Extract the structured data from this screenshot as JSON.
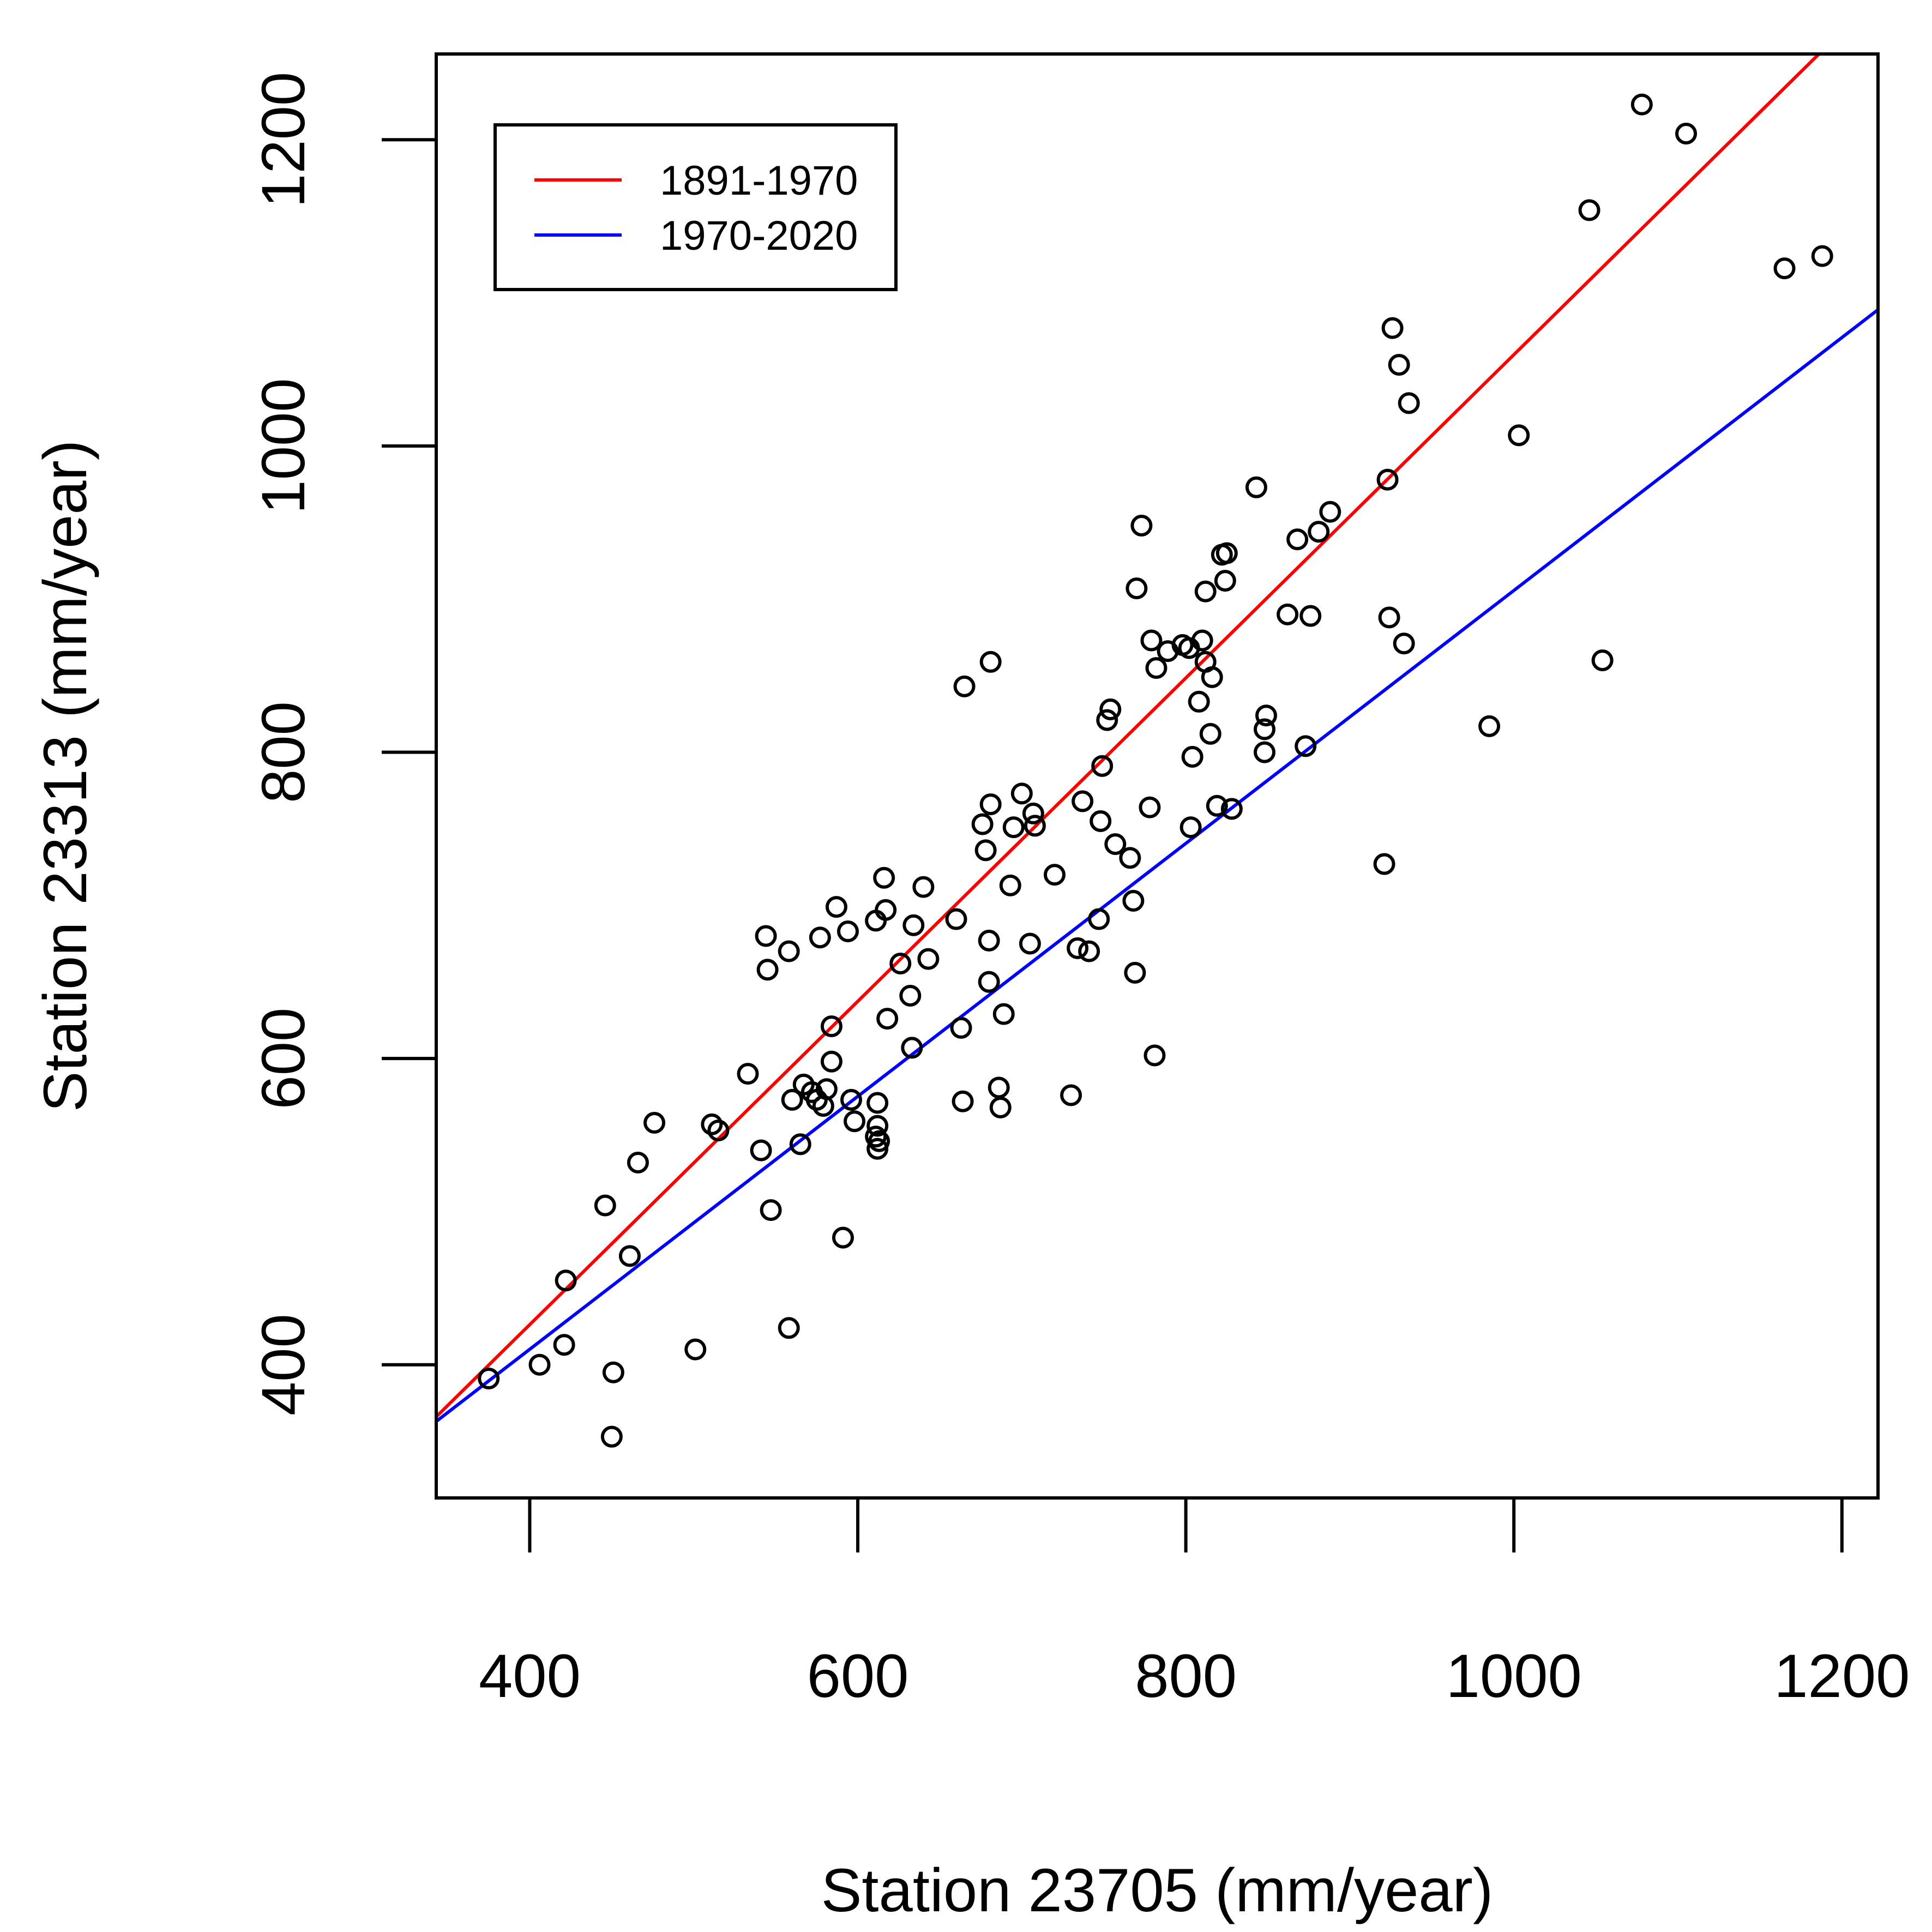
{
  "chart_data": {
    "type": "scatter",
    "title": "",
    "xlabel": "Station 23705 (mm/year)",
    "ylabel": "Station 23313 (mm/year)",
    "xlim": [
      343,
      1222
    ],
    "ylim": [
      313,
      1256
    ],
    "x_ticks": [
      400,
      600,
      800,
      1000,
      1200
    ],
    "y_ticks": [
      400,
      600,
      800,
      1000,
      1200
    ],
    "x_tick_labels": [
      "400",
      "600",
      "800",
      "1000",
      "1200"
    ],
    "y_tick_labels": [
      "400",
      "600",
      "800",
      "1000",
      "1200"
    ],
    "grid": false,
    "legend": {
      "position": "top-left",
      "entries": [
        {
          "label": "1891-1970",
          "color": "#ff0000"
        },
        {
          "label": "1970-2020",
          "color": "#0000ff"
        }
      ]
    },
    "lines": [
      {
        "name": "1891-1970",
        "color": "#ff0000",
        "x": [
          343,
          1186
        ],
        "y": [
          366,
          1256
        ]
      },
      {
        "name": "1970-2020",
        "color": "#0000ff",
        "x": [
          343,
          1222
        ],
        "y": [
          363,
          1089
        ]
      }
    ],
    "points": {
      "marker": "open-circle",
      "color": "#000000",
      "x": [
        375,
        406,
        421,
        422,
        446,
        450,
        451,
        461,
        466,
        476,
        501,
        511,
        515,
        533,
        541,
        544,
        545,
        547,
        558,
        558,
        560,
        565,
        567,
        572,
        575,
        577,
        579,
        581,
        584,
        584,
        587,
        591,
        594,
        596,
        598,
        611,
        611,
        612,
        612,
        612,
        613,
        616,
        617,
        618,
        626,
        632,
        633,
        634,
        640,
        643,
        660,
        663,
        664,
        665,
        676,
        678,
        680,
        680,
        681,
        681,
        686,
        687,
        689,
        693,
        695,
        700,
        705,
        707,
        708,
        720,
        730,
        734,
        737,
        741,
        747,
        748,
        749,
        752,
        754,
        757,
        766,
        768,
        769,
        770,
        773,
        778,
        779,
        781,
        782,
        789,
        798,
        802,
        803,
        804,
        808,
        810,
        812,
        812,
        815,
        816,
        819,
        822,
        824,
        825,
        828,
        843,
        848,
        848,
        849,
        862,
        868,
        873,
        876,
        881,
        888,
        921,
        923,
        924,
        926,
        930,
        933,
        936,
        985,
        1003,
        1046,
        1054,
        1078,
        1105,
        1165,
        1188
      ],
      "y": [
        391,
        400,
        413,
        455,
        504,
        353,
        395,
        471,
        532,
        558,
        410,
        557,
        553,
        590,
        540,
        680,
        658,
        501,
        670,
        424,
        573,
        544,
        583,
        578,
        573,
        679,
        569,
        580,
        598,
        621,
        699,
        483,
        683,
        573,
        559,
        549,
        690,
        541,
        571,
        556,
        546,
        718,
        697,
        626,
        662,
        641,
        607,
        687,
        712,
        665,
        691,
        620,
        572,
        843,
        753,
        736,
        677,
        650,
        766,
        859,
        581,
        568,
        629,
        713,
        751,
        773,
        675,
        760,
        752,
        720,
        576,
        672,
        768,
        670,
        691,
        755,
        791,
        821,
        828,
        740,
        731,
        703,
        656,
        907,
        948,
        764,
        873,
        602,
        855,
        866,
        870,
        868,
        751,
        797,
        833,
        873,
        859,
        905,
        812,
        849,
        765,
        929,
        912,
        930,
        763,
        973,
        800,
        815,
        824,
        890,
        939,
        804,
        889,
        944,
        957,
        727,
        978,
        888,
        1077,
        1053,
        871,
        1028,
        817,
        1007,
        1154,
        860,
        1223,
        1204,
        1116,
        1124
      ]
    }
  }
}
